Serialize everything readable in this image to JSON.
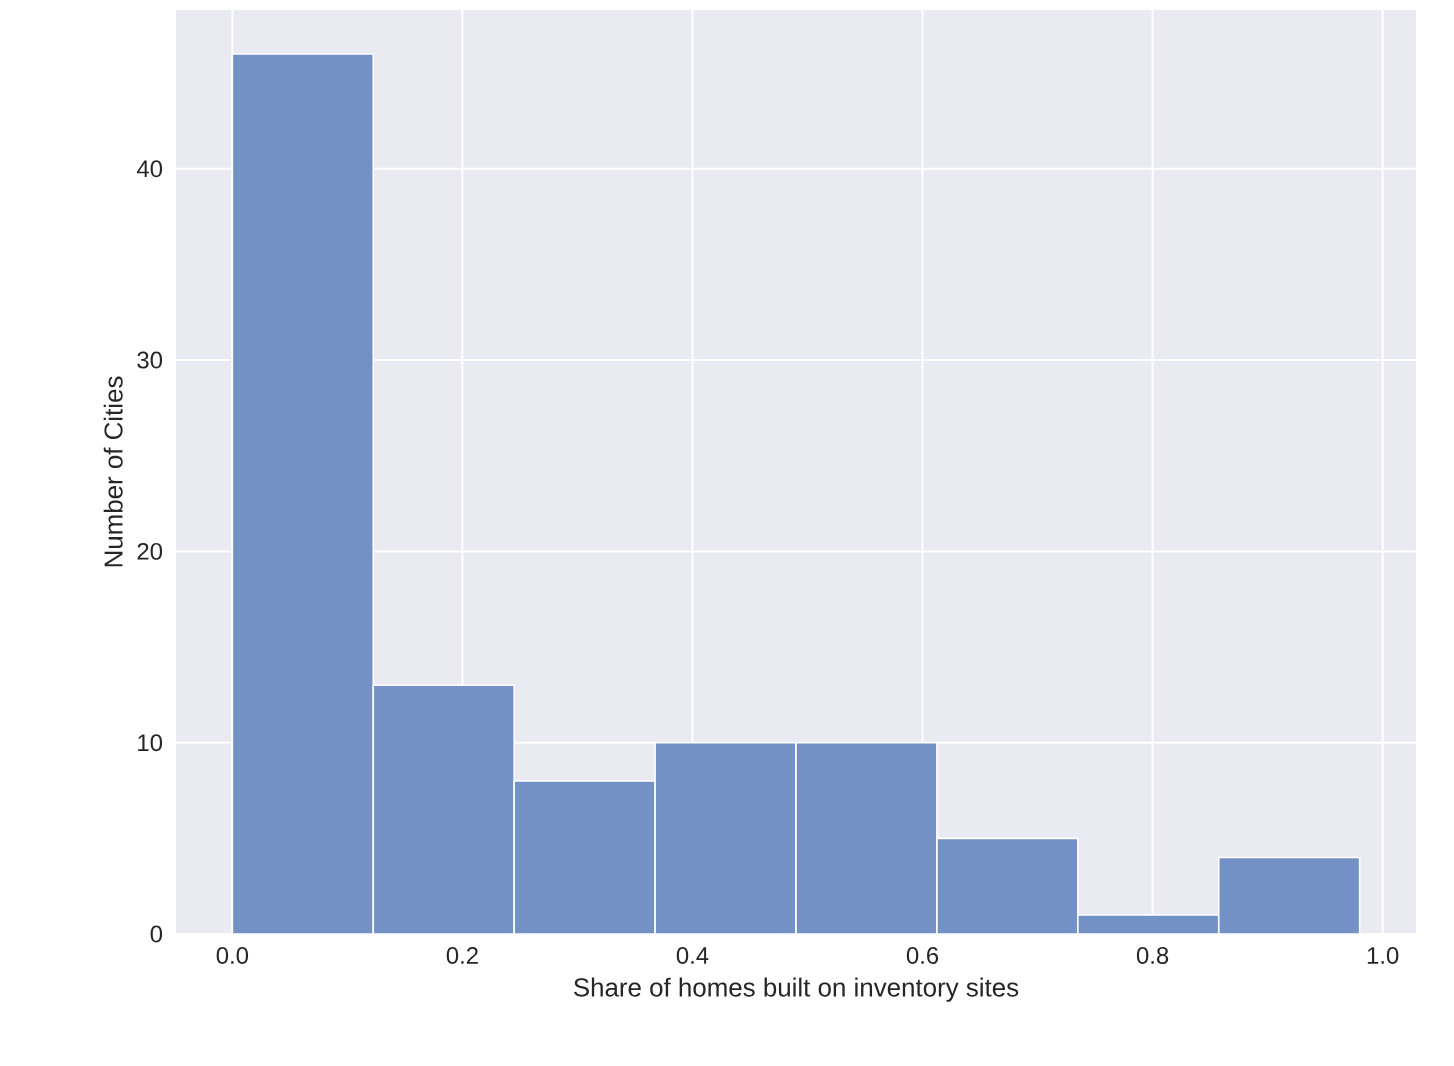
{
  "chart_data": {
    "type": "histogram",
    "xlabel": "Share of homes built on inventory sites",
    "ylabel": "Number of Cities",
    "bins": [
      0,
      0.1225,
      0.245,
      0.3675,
      0.49,
      0.6125,
      0.735,
      0.8575,
      0.98
    ],
    "values": [
      46,
      13,
      8,
      10,
      10,
      5,
      1,
      4
    ],
    "color": "#7391c4",
    "xlim": [
      -0.049,
      1.029
    ],
    "ylim": [
      0,
      48.3
    ],
    "xticks": [
      {
        "value": 0,
        "label": "0.0"
      },
      {
        "value": 0.2,
        "label": "0.2"
      },
      {
        "value": 0.4,
        "label": "0.4"
      },
      {
        "value": 0.6,
        "label": "0.6"
      },
      {
        "value": 0.8,
        "label": "0.8"
      },
      {
        "value": 1.0,
        "label": "1.0"
      }
    ],
    "yticks": [
      0,
      10,
      20,
      30,
      40
    ],
    "grid": true
  }
}
